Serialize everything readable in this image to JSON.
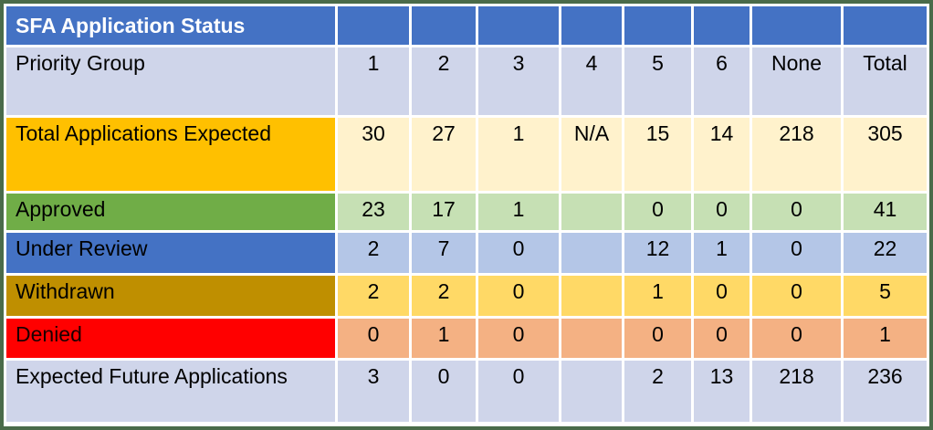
{
  "table": {
    "title": "SFA Application Status",
    "columns_row": {
      "label": "Priority Group",
      "values": [
        "1",
        "2",
        "3",
        "4",
        "5",
        "6",
        "None",
        "Total"
      ]
    },
    "rows": [
      {
        "id": "total-applications-expected",
        "label": "Total Applications Expected",
        "values": [
          "30",
          "27",
          "1",
          "N/A",
          "15",
          "14",
          "218",
          "305"
        ],
        "label_bg": "#FFC000",
        "cell_bg": "#FFF2CC",
        "label_color": "#000000"
      },
      {
        "id": "approved",
        "label": "Approved",
        "values": [
          "23",
          "17",
          "1",
          "",
          "0",
          "0",
          "0",
          "41"
        ],
        "label_bg": "#70AD47",
        "cell_bg": "#C6E0B4",
        "label_color": "#000000"
      },
      {
        "id": "under-review",
        "label": "Under Review",
        "values": [
          "2",
          "7",
          "0",
          "",
          "12",
          "1",
          "0",
          "22"
        ],
        "label_bg": "#4472C4",
        "cell_bg": "#B4C6E7",
        "label_color": "#000000"
      },
      {
        "id": "withdrawn",
        "label": "Withdrawn",
        "values": [
          "2",
          "2",
          "0",
          "",
          "1",
          "0",
          "0",
          "5"
        ],
        "label_bg": "#BF8F00",
        "cell_bg": "#FFD966",
        "label_color": "#000000"
      },
      {
        "id": "denied",
        "label": "Denied",
        "values": [
          "0",
          "1",
          "0",
          "",
          "0",
          "0",
          "0",
          "1"
        ],
        "label_bg": "#FF0000",
        "cell_bg": "#F4B183",
        "label_color": "#1a0000"
      },
      {
        "id": "expected-future-applications",
        "label": "Expected Future Applications",
        "values": [
          "3",
          "0",
          "0",
          "",
          "2",
          "13",
          "218",
          "236"
        ],
        "label_bg": "#CFD5EA",
        "cell_bg": "#CFD5EA",
        "label_color": "#000000"
      }
    ],
    "colors": {
      "frame": "#4A6B4A",
      "header_bg": "#4472C4",
      "header_text": "#FFFFFF",
      "band_bg": "#CFD5EA",
      "gridline": "#FFFFFF"
    }
  }
}
